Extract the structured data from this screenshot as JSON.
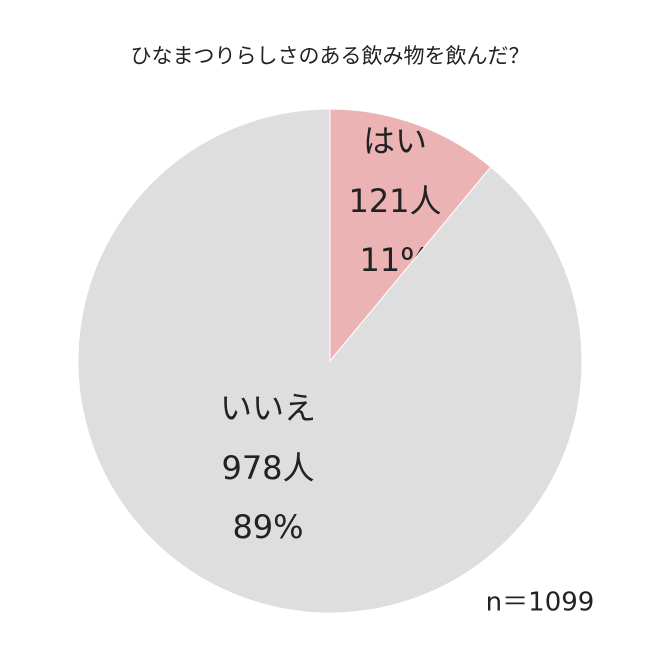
{
  "chart_data": {
    "type": "pie",
    "title": "ひなまつりらしさのある飲み物を飲んだ？",
    "categories": [
      "はい",
      "いいえ"
    ],
    "values": [
      121,
      978
    ],
    "value_labels": [
      "121人",
      "978人"
    ],
    "percents": [
      11,
      89
    ],
    "percent_labels": [
      "11%",
      "89%"
    ],
    "colors": [
      "#ebb3b4",
      "#dedede"
    ],
    "note": "n＝1099"
  }
}
